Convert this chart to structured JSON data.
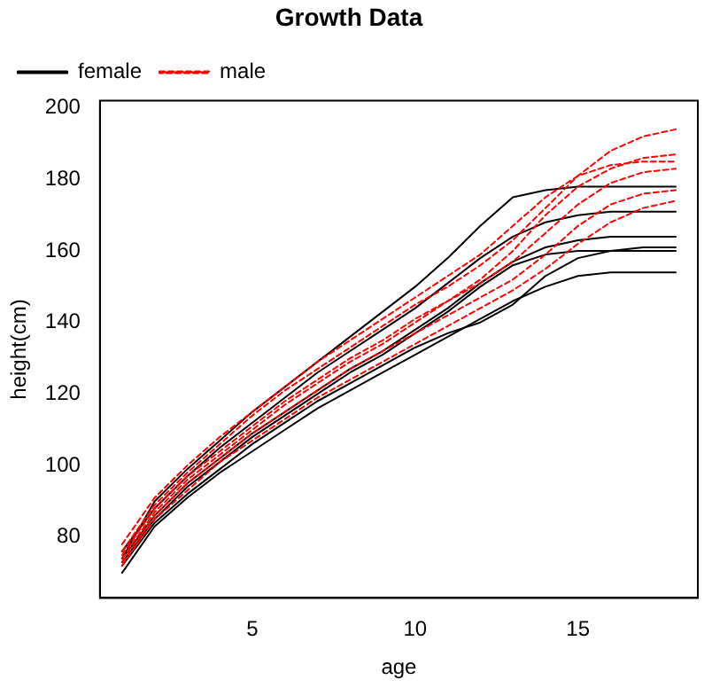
{
  "chart_data": {
    "type": "line",
    "title": "Growth Data",
    "xlabel": "age",
    "ylabel": "height(cm)",
    "x": [
      1,
      2,
      3,
      4,
      5,
      6,
      7,
      8,
      9,
      10,
      11,
      12,
      13,
      14,
      15,
      16,
      17,
      18
    ],
    "xlim": [
      0.32,
      18.68
    ],
    "xticks": [
      5,
      10,
      15
    ],
    "ylim": [
      63,
      202
    ],
    "yticks": [
      80,
      100,
      120,
      140,
      160,
      180,
      200
    ],
    "grid": false,
    "legend": "top left",
    "marker": "none",
    "series": [
      {
        "name": "female",
        "color": "#000000",
        "line_style": "solid",
        "values": [
          74,
          90,
          99,
          107,
          115,
          122,
          129,
          136,
          143,
          150,
          158,
          167,
          175,
          177,
          178,
          178,
          178,
          178
        ]
      },
      {
        "color": "#000000",
        "line_style": "solid",
        "values": [
          74,
          86,
          95,
          102,
          109,
          115,
          121,
          127,
          132,
          138,
          144,
          151,
          157,
          161,
          163,
          164,
          164,
          164
        ]
      },
      {
        "color": "#000000",
        "line_style": "solid",
        "values": [
          70,
          83,
          91,
          98,
          104,
          110,
          116,
          121,
          126,
          131,
          136,
          141,
          146,
          150,
          153,
          154,
          154,
          154
        ]
      },
      {
        "color": "#000000",
        "line_style": "solid",
        "values": [
          72,
          84,
          92,
          99,
          106,
          112,
          118,
          123,
          128,
          133,
          137,
          140,
          145,
          153,
          158,
          160,
          161,
          161
        ]
      },
      {
        "color": "#000000",
        "line_style": "solid",
        "values": [
          76,
          88,
          97,
          105,
          112,
          119,
          126,
          132,
          138,
          144,
          151,
          158,
          164,
          168,
          170,
          171,
          171,
          171
        ]
      },
      {
        "color": "#000000",
        "line_style": "solid",
        "values": [
          73,
          85,
          94,
          101,
          108,
          114,
          120,
          126,
          131,
          137,
          143,
          150,
          156,
          159,
          160,
          160,
          160,
          160
        ]
      },
      {
        "name": "male",
        "color": "#ff0000",
        "line_style": "dashed",
        "values": [
          76,
          89,
          98,
          106,
          114,
          121,
          127,
          133,
          139,
          145,
          150,
          156,
          163,
          172,
          181,
          188,
          192,
          194
        ]
      },
      {
        "color": "#ff0000",
        "line_style": "dashed",
        "values": [
          75,
          88,
          97,
          104,
          111,
          118,
          124,
          130,
          135,
          141,
          146,
          151,
          157,
          165,
          173,
          179,
          182,
          183
        ]
      },
      {
        "color": "#ff0000",
        "line_style": "dashed",
        "values": [
          73,
          86,
          95,
          102,
          109,
          115,
          121,
          127,
          132,
          137,
          142,
          147,
          152,
          159,
          167,
          173,
          176,
          177
        ]
      },
      {
        "color": "#ff0000",
        "line_style": "dashed",
        "values": [
          78,
          91,
          100,
          108,
          115,
          122,
          129,
          135,
          141,
          147,
          153,
          159,
          167,
          175,
          181,
          184,
          185,
          185
        ]
      },
      {
        "color": "#ff0000",
        "line_style": "dashed",
        "values": [
          72,
          85,
          93,
          101,
          107,
          113,
          119,
          124,
          129,
          134,
          139,
          144,
          149,
          155,
          162,
          168,
          172,
          174
        ]
      },
      {
        "color": "#ff0000",
        "line_style": "dashed",
        "values": [
          74,
          87,
          96,
          103,
          110,
          117,
          123,
          129,
          134,
          140,
          146,
          152,
          160,
          170,
          178,
          183,
          186,
          187
        ]
      }
    ]
  }
}
